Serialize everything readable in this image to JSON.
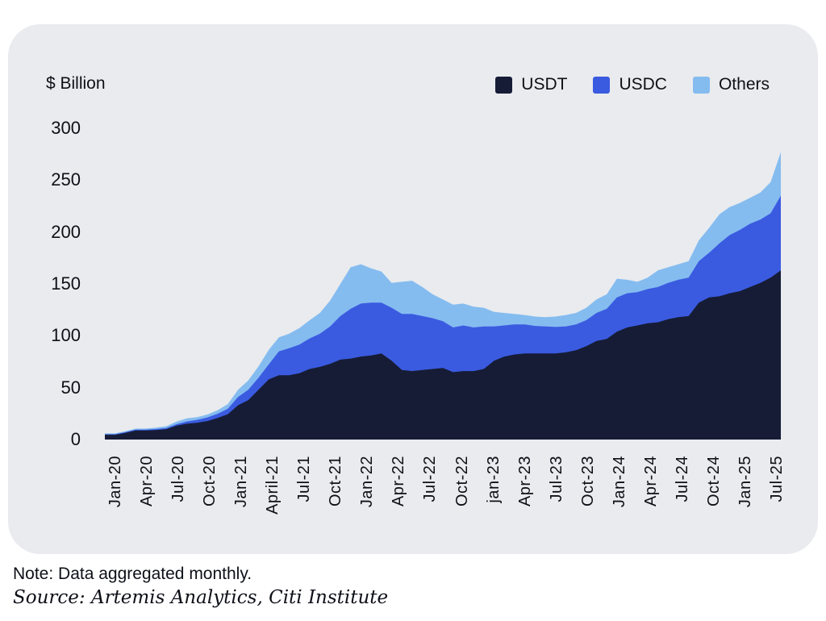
{
  "card": {
    "unit_label": "$ Billion"
  },
  "legend": [
    {
      "label": "USDT",
      "color": "#161c36"
    },
    {
      "label": "USDC",
      "color": "#3a5be0"
    },
    {
      "label": "Others",
      "color": "#85bcf0"
    }
  ],
  "notes": {
    "note": "Note: Data aggregated monthly.",
    "source": "Source: Artemis Analytics, Citi Institute"
  },
  "chart_data": {
    "type": "area",
    "stacked": true,
    "title": "",
    "ylabel": "$ Billion",
    "ylim": [
      0,
      300
    ],
    "y_ticks": [
      300,
      250,
      200,
      150,
      100,
      50,
      0
    ],
    "x_tick_labels": [
      "Jan-20",
      "Apr-20",
      "Jul-20",
      "Oct-20",
      "Jan-21",
      "April-21",
      "Jul-21",
      "Oct-21",
      "Jan-22",
      "Apr-22",
      "Jul-22",
      "Oct-22",
      "jan-23",
      "Apr-23",
      "Jul-23",
      "Oct-23",
      "Jan-24",
      "Apr-24",
      "Jul-24",
      "Oct-24",
      "Jan-25",
      "Jul-25"
    ],
    "x_start": "Jan-20",
    "x_end": "Jul-25",
    "frequency": "monthly",
    "grid": false,
    "legend_position": "top-right",
    "series": [
      {
        "name": "USDT",
        "color": "#161c36",
        "values": [
          4.6,
          4.6,
          6.4,
          8.8,
          8.8,
          9.2,
          10.0,
          13.4,
          15.2,
          16.2,
          17.8,
          20.8,
          24.4,
          33,
          38,
          48,
          58,
          62,
          62,
          64,
          68,
          70,
          73,
          77,
          78,
          80,
          81,
          83,
          76,
          67,
          66,
          67,
          68,
          69,
          65,
          66,
          66,
          68,
          76,
          80,
          82,
          83,
          83,
          83,
          83,
          84,
          86,
          90,
          95,
          97,
          104,
          108,
          110,
          112,
          113,
          116,
          118,
          119,
          132,
          137,
          138,
          141,
          143,
          147,
          151,
          156,
          163
        ]
      },
      {
        "name": "USDC",
        "color": "#3a5be0",
        "values": [
          0.5,
          0.5,
          0.7,
          0.7,
          0.7,
          0.9,
          1.1,
          1.4,
          2.2,
          2.8,
          3.5,
          4.0,
          5.2,
          8,
          10,
          11.5,
          14.5,
          23,
          26,
          27.5,
          29.5,
          32,
          36,
          42,
          48,
          51,
          51,
          49,
          51,
          54,
          55,
          52,
          49,
          45,
          43,
          44,
          42,
          41,
          33,
          30,
          29,
          28,
          26.5,
          26,
          25.5,
          25,
          25,
          25,
          27,
          29,
          33,
          33,
          32,
          33,
          34,
          35,
          36,
          37,
          40,
          43,
          51,
          56,
          59,
          61,
          61,
          62,
          72
        ]
      },
      {
        "name": "Others",
        "color": "#85bcf0",
        "values": [
          0.8,
          0.8,
          0.9,
          1.0,
          1.1,
          1.3,
          1.7,
          2.5,
          3.0,
          2.6,
          2.8,
          3.4,
          4.5,
          7,
          9,
          11,
          14,
          13.5,
          14,
          16,
          17.5,
          20,
          25,
          31,
          40,
          38,
          33,
          30,
          24,
          31,
          32,
          28,
          23,
          21,
          22,
          21,
          20,
          18,
          14,
          12,
          10,
          9,
          9,
          9,
          10,
          11,
          11,
          12,
          13,
          14,
          18,
          13,
          10,
          11,
          16,
          15,
          15,
          16,
          20,
          24,
          28,
          27,
          26,
          25,
          26,
          30,
          42
        ]
      }
    ]
  }
}
